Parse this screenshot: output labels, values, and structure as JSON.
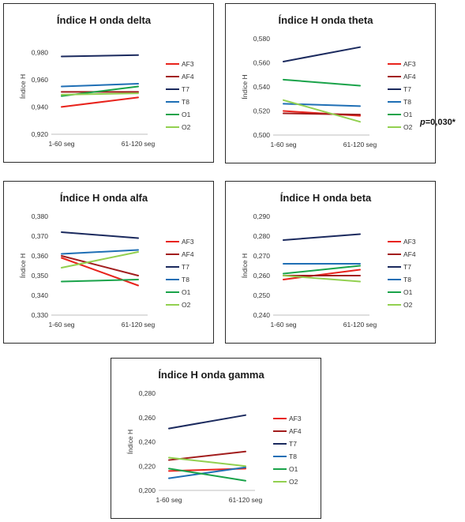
{
  "chart_data": [
    {
      "type": "line",
      "title": "Índice H onda delta",
      "xlabel": "",
      "ylabel": "Índice H",
      "categories": [
        "1-60 seg",
        "61-120 seg"
      ],
      "yticks": [
        "0,920",
        "0,940",
        "0,960",
        "0,980"
      ],
      "ylim": [
        0.92,
        0.99
      ],
      "note": "",
      "series": [
        {
          "name": "AF3",
          "color": "#e8231c",
          "values": [
            0.94,
            0.947
          ]
        },
        {
          "name": "AF4",
          "color": "#a21d1d",
          "values": [
            0.951,
            0.951
          ]
        },
        {
          "name": "T7",
          "color": "#1b2a5e",
          "values": [
            0.977,
            0.978
          ]
        },
        {
          "name": "T8",
          "color": "#1f6fb5",
          "values": [
            0.955,
            0.957
          ]
        },
        {
          "name": "O1",
          "color": "#1aa34a",
          "values": [
            0.948,
            0.955
          ]
        },
        {
          "name": "O2",
          "color": "#92d050",
          "values": [
            0.949,
            0.95
          ]
        }
      ]
    },
    {
      "type": "line",
      "title": "Índice H onda theta",
      "xlabel": "",
      "ylabel": "Índice H",
      "categories": [
        "1-60 seg",
        "61-120 seg"
      ],
      "yticks": [
        "0,500",
        "0,520",
        "0,540",
        "0,560",
        "0,580"
      ],
      "ylim": [
        0.5,
        0.58
      ],
      "note": "p=0,030*",
      "series": [
        {
          "name": "AF3",
          "color": "#e8231c",
          "values": [
            0.52,
            0.516
          ]
        },
        {
          "name": "AF4",
          "color": "#a21d1d",
          "values": [
            0.518,
            0.517
          ]
        },
        {
          "name": "T7",
          "color": "#1b2a5e",
          "values": [
            0.561,
            0.573
          ]
        },
        {
          "name": "T8",
          "color": "#1f6fb5",
          "values": [
            0.526,
            0.524
          ]
        },
        {
          "name": "O1",
          "color": "#1aa34a",
          "values": [
            0.546,
            0.541
          ]
        },
        {
          "name": "O2",
          "color": "#92d050",
          "values": [
            0.529,
            0.511
          ]
        }
      ]
    },
    {
      "type": "line",
      "title": "Índice H onda alfa",
      "xlabel": "",
      "ylabel": "Índice H",
      "categories": [
        "1-60 seg",
        "61-120 seg"
      ],
      "yticks": [
        "0,330",
        "0,340",
        "0,350",
        "0,360",
        "0,370",
        "0,380"
      ],
      "ylim": [
        0.33,
        0.38
      ],
      "note": "",
      "series": [
        {
          "name": "AF3",
          "color": "#e8231c",
          "values": [
            0.359,
            0.345
          ]
        },
        {
          "name": "AF4",
          "color": "#a21d1d",
          "values": [
            0.36,
            0.35
          ]
        },
        {
          "name": "T7",
          "color": "#1b2a5e",
          "values": [
            0.372,
            0.369
          ]
        },
        {
          "name": "T8",
          "color": "#1f6fb5",
          "values": [
            0.361,
            0.363
          ]
        },
        {
          "name": "O1",
          "color": "#1aa34a",
          "values": [
            0.347,
            0.348
          ]
        },
        {
          "name": "O2",
          "color": "#92d050",
          "values": [
            0.354,
            0.362
          ]
        }
      ]
    },
    {
      "type": "line",
      "title": "Índice H onda beta",
      "xlabel": "",
      "ylabel": "Índice H",
      "categories": [
        "1-60 seg",
        "61-120 seg"
      ],
      "yticks": [
        "0,240",
        "0,250",
        "0,260",
        "0,270",
        "0,280",
        "0,290"
      ],
      "ylim": [
        0.24,
        0.29
      ],
      "note": "",
      "series": [
        {
          "name": "AF3",
          "color": "#e8231c",
          "values": [
            0.258,
            0.263
          ]
        },
        {
          "name": "AF4",
          "color": "#a21d1d",
          "values": [
            0.26,
            0.26
          ]
        },
        {
          "name": "T7",
          "color": "#1b2a5e",
          "values": [
            0.278,
            0.281
          ]
        },
        {
          "name": "T8",
          "color": "#1f6fb5",
          "values": [
            0.266,
            0.266
          ]
        },
        {
          "name": "O1",
          "color": "#1aa34a",
          "values": [
            0.261,
            0.265
          ]
        },
        {
          "name": "O2",
          "color": "#92d050",
          "values": [
            0.26,
            0.257
          ]
        }
      ]
    },
    {
      "type": "line",
      "title": "Índice H onda gamma",
      "xlabel": "",
      "ylabel": "Índice H",
      "categories": [
        "1-60 seg",
        "61-120 seg"
      ],
      "yticks": [
        "0,200",
        "0,220",
        "0,240",
        "0,260",
        "0,280"
      ],
      "ylim": [
        0.2,
        0.28
      ],
      "note": "",
      "series": [
        {
          "name": "AF3",
          "color": "#e8231c",
          "values": [
            0.216,
            0.218
          ]
        },
        {
          "name": "AF4",
          "color": "#a21d1d",
          "values": [
            0.225,
            0.232
          ]
        },
        {
          "name": "T7",
          "color": "#1b2a5e",
          "values": [
            0.251,
            0.262
          ]
        },
        {
          "name": "T8",
          "color": "#1f6fb5",
          "values": [
            0.21,
            0.219
          ]
        },
        {
          "name": "O1",
          "color": "#1aa34a",
          "values": [
            0.218,
            0.208
          ]
        },
        {
          "name": "O2",
          "color": "#92d050",
          "values": [
            0.227,
            0.22
          ]
        }
      ]
    }
  ]
}
